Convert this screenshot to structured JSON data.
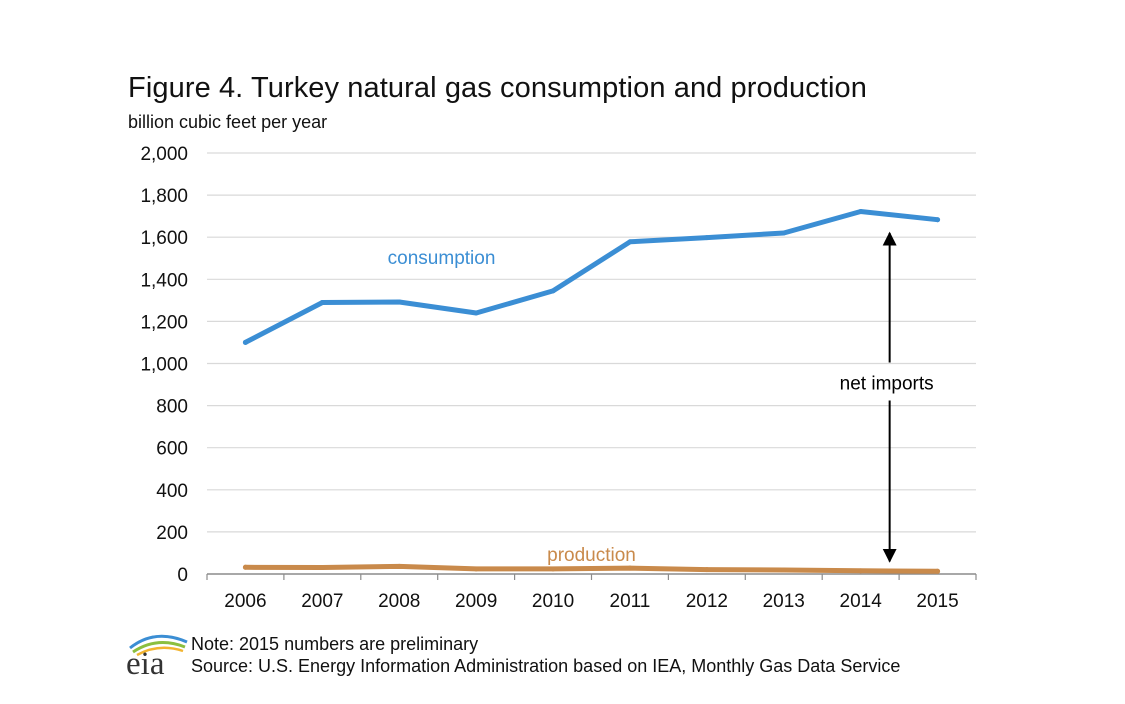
{
  "chart_data": {
    "type": "line",
    "title": "Figure 4. Turkey natural gas consumption and production",
    "subtitle": "billion cubic feet per year",
    "xlabel": "",
    "ylabel": "billion cubic feet per year",
    "categories": [
      "2006",
      "2007",
      "2008",
      "2009",
      "2010",
      "2011",
      "2012",
      "2013",
      "2014",
      "2015"
    ],
    "ylim": [
      0,
      2000
    ],
    "yticks": [
      0,
      200,
      400,
      600,
      800,
      1000,
      1200,
      1400,
      1600,
      1800,
      2000
    ],
    "ytick_labels": [
      "0",
      "200",
      "400",
      "600",
      "800",
      "1,000",
      "1,200",
      "1,400",
      "1,600",
      "1,800",
      "2,000"
    ],
    "grid": true,
    "series": [
      {
        "name": "consumption",
        "color": "#3b8ed4",
        "values": [
          1100,
          1290,
          1292,
          1240,
          1345,
          1578,
          1598,
          1620,
          1722,
          1683
        ]
      },
      {
        "name": "production",
        "color": "#c98a4b",
        "values": [
          32,
          31,
          36,
          24,
          24,
          28,
          21,
          19,
          15,
          13
        ]
      }
    ],
    "annotations": [
      {
        "text": "net imports",
        "category": "2014",
        "from_value": 1620,
        "to_value": 60,
        "label_value": 910
      }
    ]
  },
  "footer": {
    "logo_text": "eia",
    "note": "Note: 2015 numbers are preliminary",
    "source": "Source: U.S. Energy Information Administration based  on IEA, Monthly Gas Data Service"
  }
}
